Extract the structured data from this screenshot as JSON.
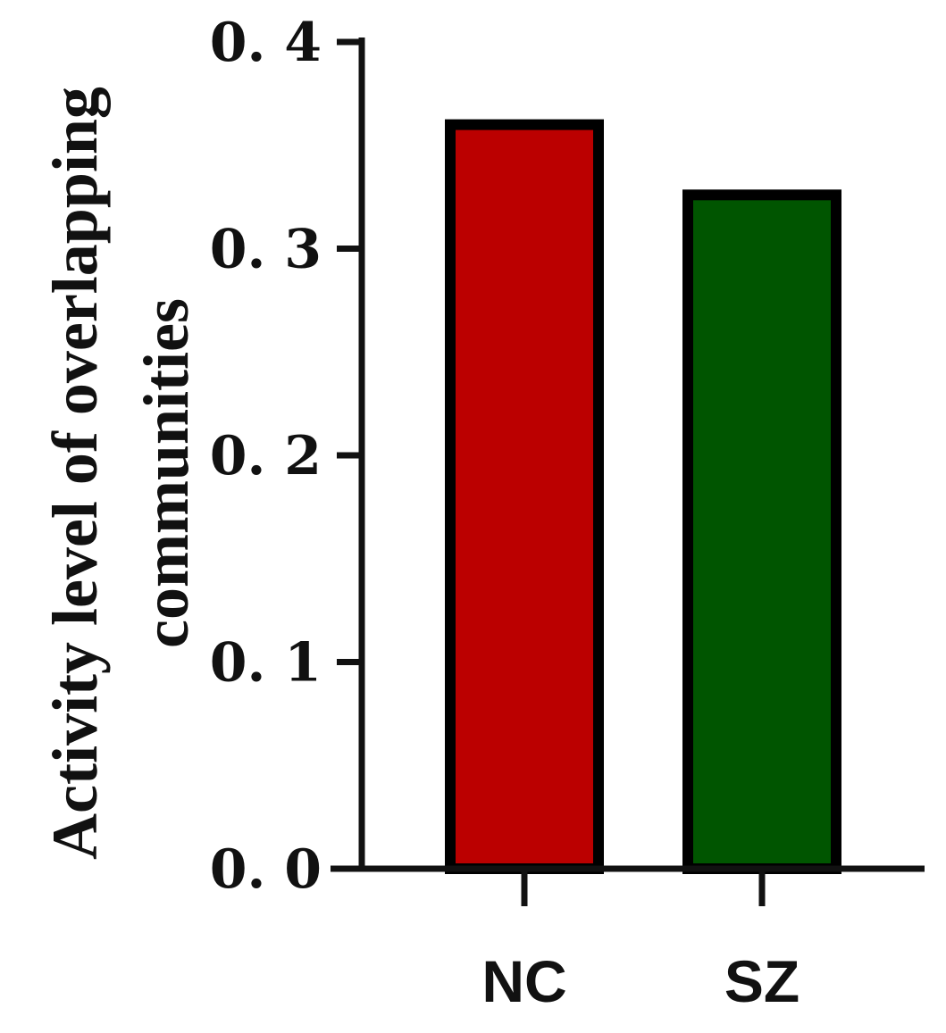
{
  "chart_data": {
    "type": "bar",
    "categories": [
      "NC",
      "SZ"
    ],
    "values": [
      0.36,
      0.326
    ],
    "colors": [
      "#bb0000",
      "#005500"
    ],
    "edge_color": "#000000",
    "ylabel_lines": [
      "Activity level of overlapping",
      "communities"
    ],
    "title": "",
    "xlabel": "",
    "ylim": [
      0,
      0.4
    ],
    "yticks": [
      0.0,
      0.1,
      0.2,
      0.3,
      0.4
    ],
    "ytick_labels": [
      "0. 0",
      "0. 1",
      "0. 2",
      "0. 3",
      "0. 4"
    ],
    "grid": false,
    "legend": "none"
  }
}
